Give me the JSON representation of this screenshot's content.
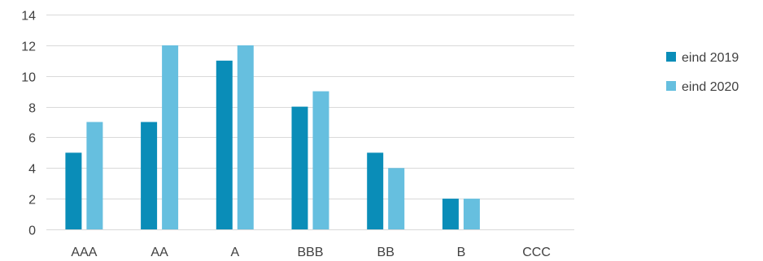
{
  "chart_data": {
    "type": "bar",
    "categories": [
      "AAA",
      "AA",
      "A",
      "BBB",
      "BB",
      "B",
      "CCC"
    ],
    "series": [
      {
        "name": "eind 2019",
        "color": "#0A8DB8",
        "values": [
          5,
          7,
          11,
          8,
          5,
          2,
          0
        ]
      },
      {
        "name": "eind 2020",
        "color": "#66BFDF",
        "values": [
          7,
          12,
          12,
          9,
          4,
          2,
          0
        ]
      }
    ],
    "ylim": [
      0,
      14
    ],
    "yticks": [
      0,
      2,
      4,
      6,
      8,
      10,
      12,
      14
    ],
    "grid": true,
    "legend": "right",
    "title": "",
    "xlabel": "",
    "ylabel": ""
  }
}
